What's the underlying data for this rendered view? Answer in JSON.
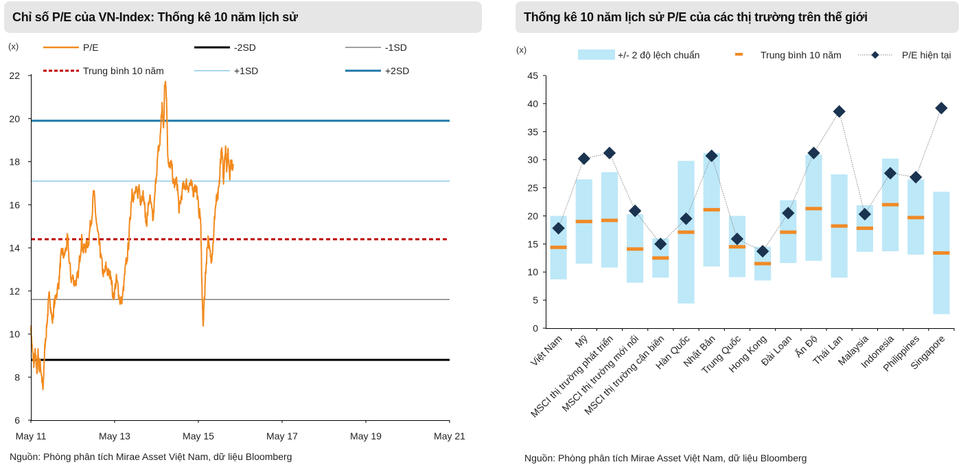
{
  "left": {
    "title": "Chỉ số P/E của VN-Index: Thống kê 10 năm lịch sử",
    "unit": "(x)",
    "source": "Nguồn: Phòng phân tích Mirae Asset Việt Nam, dữ liệu Bloomberg"
  },
  "right": {
    "title": "Thống kê 10 năm lịch sử P/E của các thị trường trên thế giới",
    "unit": "(x)",
    "source": "Nguồn: Phòng phân tích Mirae Asset Việt Nam, dữ liệu Bloomberg"
  },
  "chart_data": [
    {
      "type": "line",
      "ylim": [
        6,
        22
      ],
      "yticks": [
        6,
        8,
        10,
        12,
        14,
        16,
        18,
        20,
        22
      ],
      "xticks": [
        "May 11",
        "May 13",
        "May 15",
        "May 17",
        "May 19",
        "May 21"
      ],
      "grid": false,
      "legend": "top",
      "colors": {
        "pe": "#f28a1e",
        "mean": "#c00000",
        "sd2n": "#000000",
        "sd1n": "#808080",
        "sd1p": "#8ec9ec",
        "sd2p": "#1f78a8"
      },
      "series": [
        {
          "name": "P/E",
          "anchors": [
            [
              0.0,
              10.4
            ],
            [
              0.3,
              9.5
            ],
            [
              0.6,
              8.9
            ],
            [
              0.9,
              8.6
            ],
            [
              1.2,
              9.1
            ],
            [
              1.5,
              8.6
            ],
            [
              1.8,
              8.3
            ],
            [
              2.1,
              9.2
            ],
            [
              2.4,
              8.4
            ],
            [
              2.7,
              8.6
            ],
            [
              3.0,
              8.2
            ],
            [
              3.3,
              7.6
            ],
            [
              3.5,
              7.3
            ],
            [
              3.8,
              8.8
            ],
            [
              4.2,
              9.8
            ],
            [
              4.6,
              10.5
            ],
            [
              5.0,
              11.3
            ],
            [
              5.4,
              11.9
            ],
            [
              5.8,
              11.0
            ],
            [
              6.2,
              10.6
            ],
            [
              6.6,
              11.3
            ],
            [
              7.0,
              11.6
            ],
            [
              7.5,
              12.0
            ],
            [
              8.0,
              12.4
            ],
            [
              8.5,
              13.4
            ],
            [
              9.0,
              13.8
            ],
            [
              9.5,
              13.6
            ],
            [
              10.0,
              13.9
            ],
            [
              10.5,
              14.4
            ],
            [
              11.0,
              13.4
            ],
            [
              11.5,
              12.6
            ],
            [
              12.0,
              12.6
            ],
            [
              12.5,
              12.4
            ],
            [
              13.0,
              12.5
            ],
            [
              13.5,
              12.6
            ],
            [
              14.0,
              13.5
            ],
            [
              14.5,
              14.5
            ],
            [
              15.0,
              13.9
            ],
            [
              15.5,
              14.0
            ],
            [
              16.0,
              14.1
            ],
            [
              16.5,
              14.3
            ],
            [
              17.0,
              15.0
            ],
            [
              17.5,
              15.6
            ],
            [
              18.0,
              16.6
            ],
            [
              18.5,
              15.7
            ],
            [
              19.0,
              14.8
            ],
            [
              19.5,
              14.2
            ],
            [
              20.0,
              13.7
            ],
            [
              20.5,
              13.0
            ],
            [
              21.0,
              12.7
            ],
            [
              21.5,
              13.1
            ],
            [
              22.0,
              12.9
            ],
            [
              22.5,
              12.7
            ],
            [
              23.0,
              12.8
            ],
            [
              23.5,
              11.7
            ],
            [
              24.0,
              12.0
            ],
            [
              24.5,
              12.5
            ],
            [
              25.0,
              12.1
            ],
            [
              25.5,
              11.6
            ],
            [
              26.0,
              11.5
            ],
            [
              26.5,
              12.0
            ],
            [
              27.0,
              12.9
            ],
            [
              27.5,
              13.4
            ],
            [
              28.0,
              14.2
            ],
            [
              28.5,
              15.5
            ],
            [
              29.0,
              16.8
            ],
            [
              29.5,
              16.3
            ],
            [
              30.0,
              16.6
            ],
            [
              30.5,
              16.4
            ],
            [
              31.0,
              16.9
            ],
            [
              31.5,
              16.2
            ],
            [
              32.0,
              16.6
            ],
            [
              32.5,
              16.1
            ],
            [
              33.0,
              15.1
            ],
            [
              33.5,
              15.6
            ],
            [
              34.0,
              16.4
            ],
            [
              34.5,
              15.8
            ],
            [
              35.0,
              15.2
            ],
            [
              35.5,
              16.3
            ],
            [
              36.0,
              17.6
            ],
            [
              36.5,
              18.4
            ],
            [
              37.0,
              18.9
            ],
            [
              37.3,
              19.9
            ],
            [
              37.6,
              20.5
            ],
            [
              38.0,
              19.5
            ],
            [
              38.3,
              21.3
            ],
            [
              38.6,
              22.0
            ],
            [
              38.9,
              20.8
            ],
            [
              39.2,
              18.6
            ],
            [
              39.6,
              17.6
            ],
            [
              40.0,
              17.9
            ],
            [
              40.5,
              17.6
            ],
            [
              41.0,
              16.8
            ],
            [
              41.5,
              17.1
            ],
            [
              42.0,
              16.9
            ],
            [
              42.5,
              15.6
            ],
            [
              43.0,
              16.3
            ],
            [
              43.5,
              16.7
            ],
            [
              44.0,
              16.9
            ],
            [
              44.5,
              17.0
            ],
            [
              45.0,
              16.8
            ],
            [
              45.5,
              17.0
            ],
            [
              46.0,
              16.8
            ],
            [
              46.5,
              16.6
            ],
            [
              47.0,
              16.9
            ],
            [
              47.5,
              16.8
            ],
            [
              48.0,
              15.8
            ],
            [
              48.5,
              15.6
            ],
            [
              48.8,
              14.4
            ],
            [
              49.0,
              12.3
            ],
            [
              49.2,
              11.0
            ],
            [
              49.4,
              10.4
            ],
            [
              49.7,
              11.6
            ],
            [
              50.0,
              12.6
            ],
            [
              50.4,
              13.7
            ],
            [
              50.8,
              14.6
            ],
            [
              51.2,
              13.8
            ],
            [
              51.6,
              13.5
            ],
            [
              52.0,
              13.9
            ],
            [
              52.4,
              14.6
            ],
            [
              52.8,
              15.8
            ],
            [
              53.2,
              16.2
            ],
            [
              53.6,
              16.3
            ],
            [
              54.0,
              16.9
            ],
            [
              54.3,
              17.9
            ],
            [
              54.6,
              18.6
            ],
            [
              54.9,
              18.1
            ],
            [
              55.2,
              17.0
            ],
            [
              55.5,
              18.3
            ],
            [
              55.8,
              18.6
            ],
            [
              56.1,
              17.7
            ],
            [
              56.4,
              18.5
            ],
            [
              56.7,
              18.0
            ],
            [
              57.0,
              17.5
            ],
            [
              57.3,
              18.0
            ],
            [
              57.6,
              17.8
            ],
            [
              58.0,
              17.9
            ]
          ]
        },
        {
          "name": "-2SD",
          "value": 8.8
        },
        {
          "name": "-1SD",
          "value": 11.6
        },
        {
          "name": "Trung bình 10 năm",
          "value": 14.4
        },
        {
          "name": "+1SD",
          "value": 17.1
        },
        {
          "name": "+2SD",
          "value": 19.9
        }
      ]
    },
    {
      "type": "bar",
      "ylim": [
        0,
        45
      ],
      "yticks": [
        0,
        5,
        10,
        15,
        20,
        25,
        30,
        35,
        40,
        45
      ],
      "grid": false,
      "legend": "top",
      "colors": {
        "range": "#bde8f8",
        "mean": "#f08a26",
        "current": "#1a3350",
        "line": "#9a9a9a"
      },
      "categories": [
        "Việt Nam",
        "Mỹ",
        "MSCI thị trường phát triển",
        "MSCI thị trường mới nổi",
        "MSCI thị trường cận biên",
        "Hàn Quốc",
        "Nhật Bản",
        "Trung Quốc",
        "Hong Kong",
        "Đài Loan",
        "Ấn Độ",
        "Thái Lan",
        "Malaysia",
        "Indonesia",
        "Philippines",
        "Singapore"
      ],
      "series": [
        {
          "name": "+/- 2 độ lệch chuẩn",
          "low": [
            8.7,
            11.5,
            10.8,
            8.1,
            9.0,
            4.4,
            11.0,
            9.1,
            8.5,
            11.6,
            12.0,
            9.0,
            13.6,
            13.7,
            13.1,
            2.5
          ],
          "high": [
            20.0,
            26.5,
            27.8,
            20.3,
            16.0,
            29.8,
            31.2,
            20.0,
            14.5,
            22.8,
            30.9,
            27.4,
            21.9,
            30.2,
            26.5,
            24.3
          ]
        },
        {
          "name": "Trung bình 10 năm",
          "values": [
            14.4,
            19.0,
            19.2,
            14.1,
            12.5,
            17.1,
            21.1,
            14.5,
            11.5,
            17.1,
            21.3,
            18.2,
            17.8,
            22.0,
            19.7,
            13.4
          ]
        },
        {
          "name": "P/E hiện tại",
          "values": [
            17.8,
            30.2,
            31.2,
            20.9,
            15.0,
            19.5,
            30.7,
            15.9,
            13.7,
            20.5,
            31.2,
            38.6,
            20.3,
            27.6,
            26.9,
            39.2
          ]
        }
      ]
    }
  ]
}
